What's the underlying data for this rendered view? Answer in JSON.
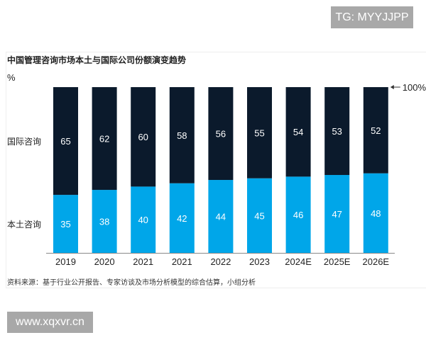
{
  "watermarks": {
    "top": "TG: MYYJJPP",
    "bottom": "www.xqxvr.cn"
  },
  "chart_data": {
    "type": "bar",
    "stacked": true,
    "title": "中国管理咨询市场本土与国际公司份额演变趋势",
    "ylabel": "%",
    "categories": [
      "2019",
      "2020",
      "2021",
      "2021",
      "2022",
      "2023",
      "2024E",
      "2025E",
      "2026E"
    ],
    "series": [
      {
        "name": "本土咨询",
        "values": [
          35,
          38,
          40,
          42,
          44,
          45,
          46,
          47,
          48
        ],
        "color": "#00a6e9"
      },
      {
        "name": "国际咨询",
        "values": [
          65,
          62,
          60,
          58,
          56,
          55,
          54,
          53,
          52
        ],
        "color": "#0b1a2c"
      }
    ],
    "ylim": [
      0,
      100
    ],
    "annotation": "100%",
    "grid": false,
    "source": "资料来源：基于行业公开报告、专家访谈及市场分析模型的综合估算，小组分析"
  }
}
